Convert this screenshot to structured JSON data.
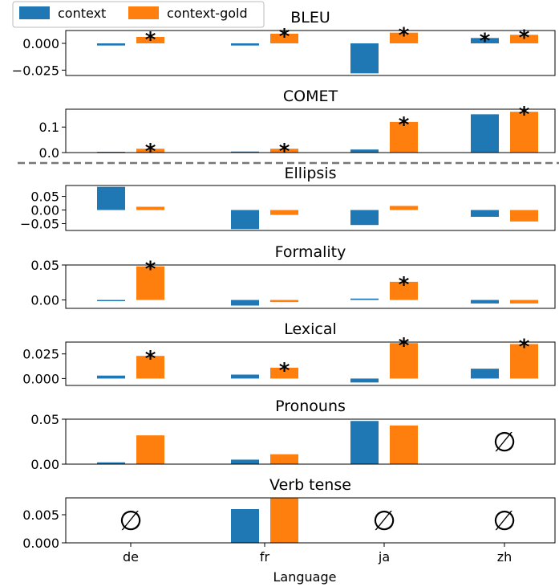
{
  "colors": {
    "context": "#1f77b4",
    "context_gold": "#ff7f0e"
  },
  "legend": {
    "context": "context",
    "context_gold": "context-gold"
  },
  "xlabel": "Language",
  "empty_symbol": "∅",
  "star_symbol": "*",
  "chart_data": [
    {
      "type": "bar",
      "title": "BLEU",
      "categories": [
        "de",
        "fr",
        "ja",
        "zh"
      ],
      "series": [
        {
          "name": "context",
          "values": [
            -0.002,
            -0.002,
            -0.028,
            0.005
          ]
        },
        {
          "name": "context-gold",
          "values": [
            0.006,
            0.009,
            0.01,
            0.008
          ]
        }
      ],
      "significant": {
        "context": [
          false,
          false,
          false,
          true
        ],
        "context-gold": [
          true,
          true,
          true,
          true
        ]
      },
      "ylim": [
        -0.03,
        0.012
      ],
      "yticks": [
        0.0,
        -0.025
      ],
      "ytick_labels": [
        "0.000",
        "−0.025"
      ]
    },
    {
      "type": "bar",
      "title": "COMET",
      "categories": [
        "de",
        "fr",
        "ja",
        "zh"
      ],
      "series": [
        {
          "name": "context",
          "values": [
            0.003,
            0.004,
            0.012,
            0.15
          ]
        },
        {
          "name": "context-gold",
          "values": [
            0.015,
            0.015,
            0.12,
            0.16
          ]
        }
      ],
      "significant": {
        "context": [
          false,
          false,
          false,
          false
        ],
        "context-gold": [
          true,
          true,
          true,
          true
        ]
      },
      "ylim": [
        0,
        0.17
      ],
      "yticks": [
        0.1,
        0.0
      ],
      "ytick_labels": [
        "0.1",
        "0.0"
      ]
    },
    {
      "type": "bar",
      "title": "Ellipsis",
      "categories": [
        "de",
        "fr",
        "ja",
        "zh"
      ],
      "series": [
        {
          "name": "context",
          "values": [
            0.085,
            -0.07,
            -0.055,
            -0.025
          ]
        },
        {
          "name": "context-gold",
          "values": [
            0.012,
            -0.018,
            0.015,
            -0.042
          ]
        }
      ],
      "significant": {
        "context": [
          false,
          false,
          false,
          false
        ],
        "context-gold": [
          false,
          false,
          false,
          false
        ]
      },
      "ylim": [
        -0.075,
        0.09
      ],
      "yticks": [
        0.05,
        0.0,
        -0.05
      ],
      "ytick_labels": [
        "0.05",
        "0.00",
        "−0.05"
      ]
    },
    {
      "type": "bar",
      "title": "Formality",
      "categories": [
        "de",
        "fr",
        "ja",
        "zh"
      ],
      "series": [
        {
          "name": "context",
          "values": [
            -0.001,
            -0.008,
            0.002,
            -0.005
          ]
        },
        {
          "name": "context-gold",
          "values": [
            0.048,
            -0.003,
            0.026,
            -0.005
          ]
        }
      ],
      "significant": {
        "context": [
          false,
          false,
          false,
          false
        ],
        "context-gold": [
          true,
          false,
          true,
          false
        ]
      },
      "ylim": [
        -0.012,
        0.05
      ],
      "yticks": [
        0.05,
        0.0
      ],
      "ytick_labels": [
        "0.05",
        "0.00"
      ]
    },
    {
      "type": "bar",
      "title": "Lexical",
      "categories": [
        "de",
        "fr",
        "ja",
        "zh"
      ],
      "series": [
        {
          "name": "context",
          "values": [
            0.003,
            0.004,
            -0.004,
            0.01
          ]
        },
        {
          "name": "context-gold",
          "values": [
            0.023,
            0.011,
            0.036,
            0.035
          ]
        }
      ],
      "significant": {
        "context": [
          false,
          false,
          false,
          false
        ],
        "context-gold": [
          true,
          true,
          true,
          true
        ]
      },
      "ylim": [
        -0.007,
        0.037
      ],
      "yticks": [
        0.025,
        0.0
      ],
      "ytick_labels": [
        "0.025",
        "0.000"
      ]
    },
    {
      "type": "bar",
      "title": "Pronouns",
      "categories": [
        "de",
        "fr",
        "ja",
        "zh"
      ],
      "series": [
        {
          "name": "context",
          "values": [
            0.002,
            0.005,
            0.048,
            null
          ]
        },
        {
          "name": "context-gold",
          "values": [
            0.032,
            0.011,
            0.043,
            null
          ]
        }
      ],
      "significant": {
        "context": [
          false,
          false,
          false,
          false
        ],
        "context-gold": [
          false,
          false,
          false,
          false
        ]
      },
      "ylim": [
        0,
        0.05
      ],
      "yticks": [
        0.05,
        0.0
      ],
      "ytick_labels": [
        "0.05",
        "0.00"
      ]
    },
    {
      "type": "bar",
      "title": "Verb tense",
      "categories": [
        "de",
        "fr",
        "ja",
        "zh"
      ],
      "series": [
        {
          "name": "context",
          "values": [
            null,
            0.006,
            null,
            null
          ]
        },
        {
          "name": "context-gold",
          "values": [
            null,
            0.008,
            null,
            null
          ]
        }
      ],
      "significant": {
        "context": [
          false,
          false,
          false,
          false
        ],
        "context-gold": [
          false,
          false,
          false,
          false
        ]
      },
      "ylim": [
        0,
        0.008
      ],
      "yticks": [
        0.005,
        0.0
      ],
      "ytick_labels": [
        "0.005",
        "0.000"
      ]
    }
  ]
}
